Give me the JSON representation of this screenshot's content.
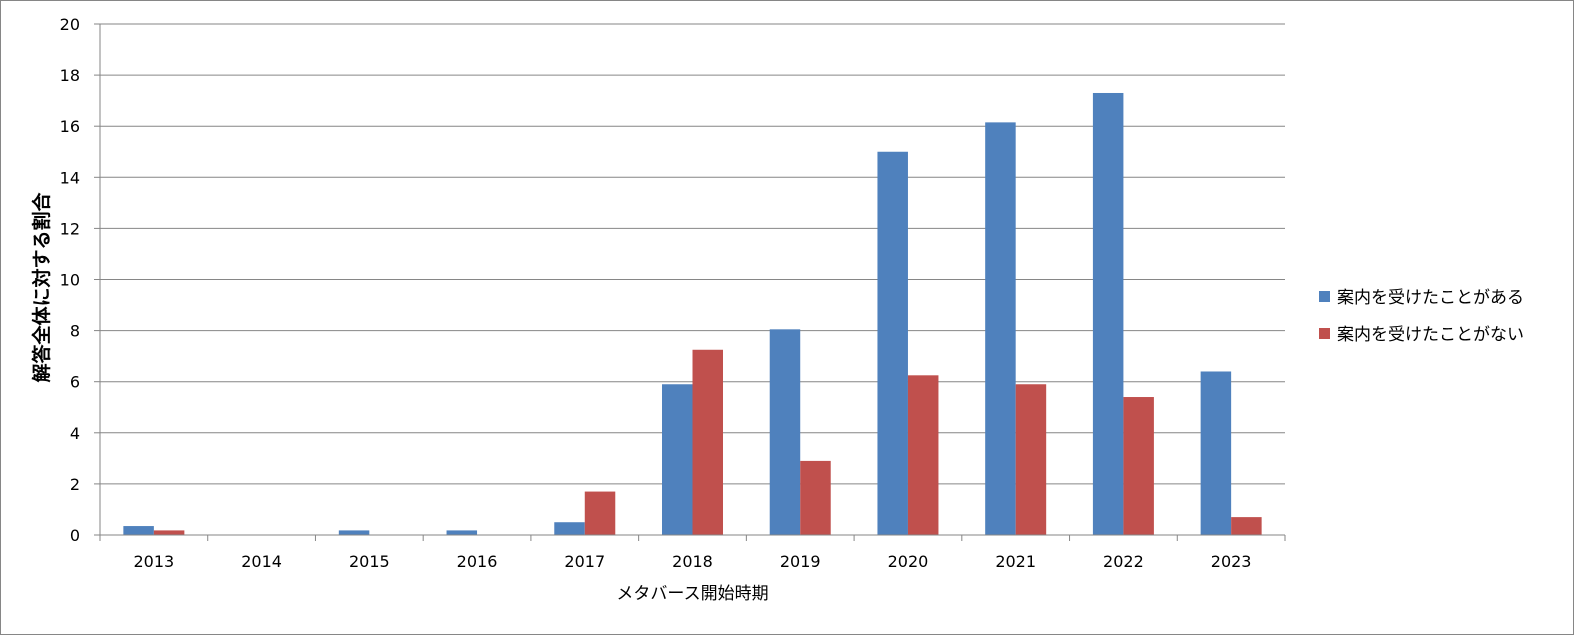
{
  "chart_data": {
    "type": "bar",
    "xlabel": "メタバース開始時期",
    "ylabel": "解答全体に対する割合",
    "ylim": [
      0,
      20
    ],
    "yticks": [
      "0",
      "2",
      "4",
      "6",
      "8",
      "10",
      "12",
      "14",
      "16",
      "18",
      "20"
    ],
    "categories": [
      "2013",
      "2014",
      "2015",
      "2016",
      "2017",
      "2018",
      "2019",
      "2020",
      "2021",
      "2022",
      "2023"
    ],
    "series": [
      {
        "name": "案内を受けたことがある",
        "color": "#4F81BD",
        "values": [
          0.35,
          0,
          0.18,
          0.18,
          0.5,
          5.9,
          8.05,
          15.0,
          16.15,
          17.3,
          6.4
        ]
      },
      {
        "name": "案内を受けたことがない",
        "color": "#C0504D",
        "values": [
          0.18,
          0,
          0,
          0,
          1.7,
          7.25,
          2.9,
          6.25,
          5.9,
          5.4,
          0.7
        ]
      }
    ],
    "grid": true,
    "legend": "right"
  }
}
